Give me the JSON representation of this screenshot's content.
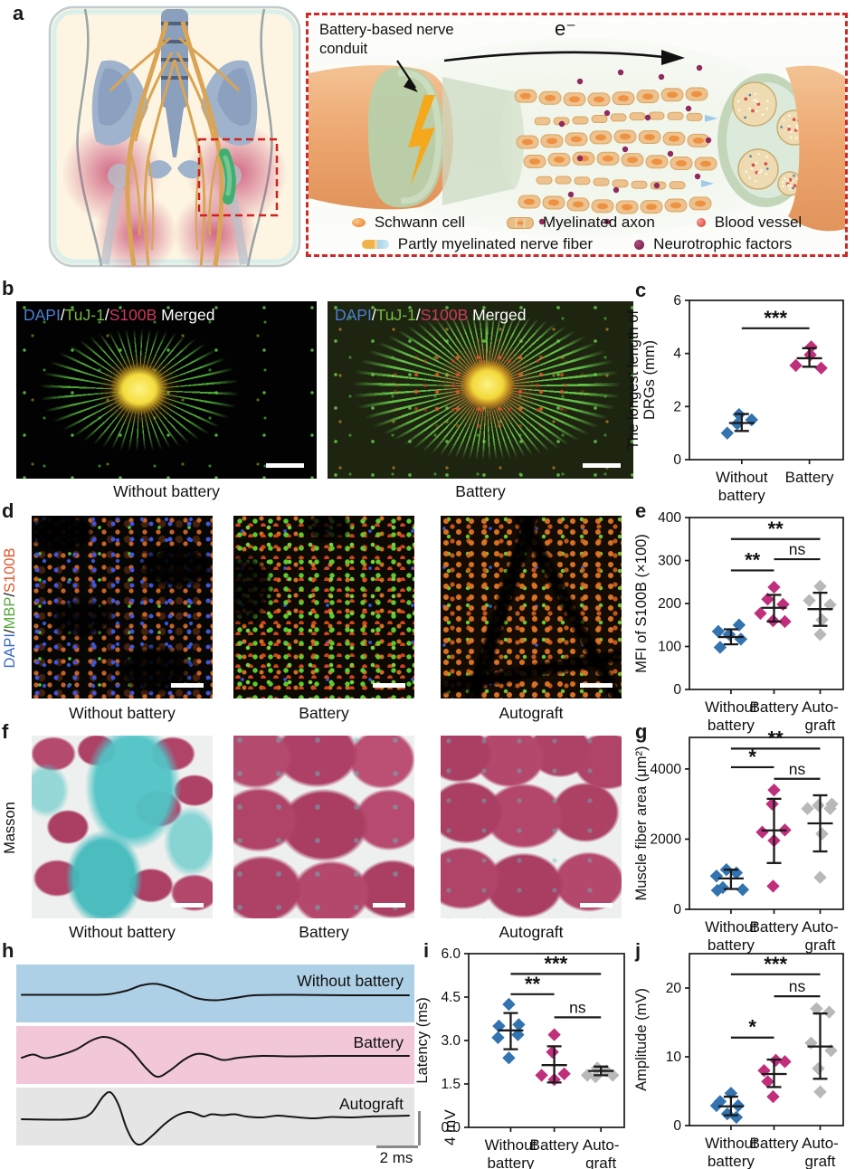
{
  "panels": {
    "a": {
      "label": "a",
      "schematic": {
        "callout": "Battery-based nerve conduit",
        "electron_label": "e⁻",
        "legend_row1": [
          {
            "icon": "schwann-cell-icon",
            "label": "Schwann cell"
          },
          {
            "icon": "myelinated-axon-icon",
            "label": "Myelinated axon"
          },
          {
            "icon": "blood-vessel-icon",
            "label": "Blood vessel"
          }
        ],
        "legend_row2": [
          {
            "icon": "partly-myelinated-nerve-fiber-icon",
            "label": "Partly myelinated nerve fiber"
          },
          {
            "icon": "neurotrophic-factors-icon",
            "label": "Neurotrophic factors"
          }
        ]
      }
    },
    "b": {
      "label": "b",
      "stain_header": [
        {
          "text": "DAPI",
          "color": "#4d7fd6"
        },
        {
          "text": "/",
          "color": "#ffffff"
        },
        {
          "text": "TuJ-1",
          "color": "#76b943"
        },
        {
          "text": "/",
          "color": "#ffffff"
        },
        {
          "text": "S100B",
          "color": "#cc3a5f"
        },
        {
          "text": " Merged",
          "color": "#ffffff"
        }
      ],
      "captions": [
        "Without battery",
        "Battery"
      ]
    },
    "c": {
      "label": "c"
    },
    "d": {
      "label": "d",
      "stain_label_parts": [
        {
          "text": "DAPI",
          "color": "#3a66c9"
        },
        {
          "text": "/",
          "color": "#1a1a1a"
        },
        {
          "text": "MBP",
          "color": "#59a83f"
        },
        {
          "text": "/",
          "color": "#1a1a1a"
        },
        {
          "text": "S100B",
          "color": "#e2572e"
        }
      ],
      "captions": [
        "Without battery",
        "Battery",
        "Autograft"
      ]
    },
    "e": {
      "label": "e"
    },
    "f": {
      "label": "f",
      "stain_label": "Masson",
      "captions": [
        "Without battery",
        "Battery",
        "Autograft"
      ]
    },
    "g": {
      "label": "g"
    },
    "h": {
      "label": "h",
      "scale_v": "4 mV",
      "scale_h": "2 ms"
    },
    "i": {
      "label": "i"
    },
    "j": {
      "label": "j"
    }
  },
  "colors": {
    "without_battery": "#3273b0",
    "battery": "#c02f7c",
    "autograft": "#b9b7b8",
    "band_without_battery": "#aed0e6",
    "band_battery": "#f3c7da",
    "band_autograft": "#e6e5e5",
    "dashed_box": "#cf2a2a"
  },
  "chart_data": [
    {
      "id": "c",
      "type": "scatter",
      "ylabel_lines": [
        "The longest length of",
        "DRGs (mm)"
      ],
      "ylim": [
        0,
        6
      ],
      "yticks": [
        {
          "v": 0,
          "t": "0"
        },
        {
          "v": 2,
          "t": "2"
        },
        {
          "v": 4,
          "t": "4"
        },
        {
          "v": 6,
          "t": "6"
        }
      ],
      "categories": [
        [
          "Without",
          "battery"
        ],
        [
          "Battery"
        ]
      ],
      "series": [
        {
          "name": "Without battery",
          "color": "#3273b0",
          "points": [
            [
              -16,
              1.0
            ],
            [
              -5,
              1.35
            ],
            [
              -3,
              1.7
            ],
            [
              11,
              1.5
            ]
          ],
          "mean": 1.38,
          "err": [
            1.08,
            1.72
          ]
        },
        {
          "name": "Battery",
          "color": "#c02f7c",
          "points": [
            [
              -15,
              3.55
            ],
            [
              1,
              3.95
            ],
            [
              2,
              4.25
            ],
            [
              13,
              3.45
            ]
          ],
          "mean": 3.82,
          "err": [
            3.5,
            4.2
          ]
        }
      ],
      "sig": [
        {
          "a": 0,
          "b": 1,
          "y": 4.95,
          "label": "***"
        }
      ]
    },
    {
      "id": "e",
      "type": "scatter",
      "ylabel_lines": [
        "MFI of S100B (×100)"
      ],
      "ylim": [
        0,
        400
      ],
      "yticks": [
        {
          "v": 0,
          "t": "0"
        },
        {
          "v": 100,
          "t": "100"
        },
        {
          "v": 200,
          "t": "200"
        },
        {
          "v": 300,
          "t": "300"
        },
        {
          "v": 400,
          "t": "400"
        }
      ],
      "categories": [
        [
          "Without",
          "battery"
        ],
        [
          "Battery"
        ],
        [
          "Auto-",
          "graft"
        ]
      ],
      "series": [
        {
          "name": "Without battery",
          "color": "#3273b0",
          "points": [
            [
              -14,
              135
            ],
            [
              -12,
              98
            ],
            [
              -2,
              128
            ],
            [
              9,
              150
            ],
            [
              11,
              117
            ]
          ],
          "mean": 122,
          "err": [
            105,
            140
          ]
        },
        {
          "name": "Battery",
          "color": "#c02f7c",
          "points": [
            [
              -15,
              177
            ],
            [
              -7,
              210
            ],
            [
              0,
              238
            ],
            [
              10,
              198
            ],
            [
              -1,
              160
            ],
            [
              12,
              158
            ]
          ],
          "mean": 190,
          "err": [
            158,
            220
          ]
        },
        {
          "name": "Autograft",
          "color": "#b9b7b8",
          "points": [
            [
              -12,
              207
            ],
            [
              0,
              240
            ],
            [
              11,
              197
            ],
            [
              2,
              162
            ],
            [
              0,
              128
            ]
          ],
          "mean": 187,
          "err": [
            148,
            225
          ]
        }
      ],
      "sig": [
        {
          "a": 0,
          "b": 1,
          "y": 277,
          "label": "**"
        },
        {
          "a": 1,
          "b": 2,
          "y": 303,
          "label": "ns"
        },
        {
          "a": 0,
          "b": 2,
          "y": 350,
          "label": "**"
        }
      ]
    },
    {
      "id": "g",
      "type": "scatter",
      "ylabel_lines": [
        "Muscle fiber area (μm²)"
      ],
      "ylim": [
        0,
        4900
      ],
      "yticks": [
        {
          "v": 0,
          "t": "0"
        },
        {
          "v": 2000,
          "t": "2000"
        },
        {
          "v": 4000,
          "t": "4000"
        }
      ],
      "categories": [
        [
          "Without",
          "battery"
        ],
        [
          "Battery"
        ],
        [
          "Auto-",
          "graft"
        ]
      ],
      "series": [
        {
          "name": "Without battery",
          "color": "#3273b0",
          "points": [
            [
              -16,
              950
            ],
            [
              -5,
              1130
            ],
            [
              6,
              1040
            ],
            [
              -9,
              620
            ],
            [
              -15,
              540
            ],
            [
              13,
              560
            ]
          ],
          "mean": 880,
          "err": [
            580,
            1130
          ]
        },
        {
          "name": "Battery",
          "color": "#c02f7c",
          "points": [
            [
              -13,
              2200
            ],
            [
              0,
              3400
            ],
            [
              -2,
              3000
            ],
            [
              12,
              2260
            ],
            [
              0,
              1960
            ],
            [
              -1,
              660
            ]
          ],
          "mean": 2250,
          "err": [
            1320,
            3150
          ]
        },
        {
          "name": "Autograft",
          "color": "#b9b7b8",
          "points": [
            [
              -14,
              2870
            ],
            [
              -2,
              2960
            ],
            [
              11,
              2870
            ],
            [
              13,
              3000
            ],
            [
              2,
              2150
            ],
            [
              0,
              910
            ]
          ],
          "mean": 2450,
          "err": [
            1650,
            3250
          ]
        }
      ],
      "sig": [
        {
          "a": 0,
          "b": 1,
          "y": 4050,
          "label": "*"
        },
        {
          "a": 1,
          "b": 2,
          "y": 3720,
          "label": "ns"
        },
        {
          "a": 0,
          "b": 2,
          "y": 4580,
          "label": "**"
        }
      ]
    },
    {
      "id": "i",
      "type": "scatter",
      "ylabel_lines": [
        "Latency (ms)"
      ],
      "ylim": [
        0,
        6
      ],
      "yticks": [
        {
          "v": 0,
          "t": "0.0"
        },
        {
          "v": 1.5,
          "t": "1.5"
        },
        {
          "v": 3,
          "t": "3.0"
        },
        {
          "v": 4.5,
          "t": "4.5"
        },
        {
          "v": 6,
          "t": "6.0"
        }
      ],
      "categories": [
        [
          "Without",
          "battery"
        ],
        [
          "Battery"
        ],
        [
          "Auto-",
          "graft"
        ]
      ],
      "series": [
        {
          "name": "Without battery",
          "color": "#3273b0",
          "points": [
            [
              -13,
              3.5
            ],
            [
              -2,
              4.25
            ],
            [
              9,
              3.55
            ],
            [
              -14,
              3.1
            ],
            [
              8,
              3.2
            ],
            [
              -2,
              2.4
            ]
          ],
          "mean": 3.35,
          "err": [
            2.7,
            3.95
          ]
        },
        {
          "name": "Battery",
          "color": "#c02f7c",
          "points": [
            [
              0,
              3.2
            ],
            [
              -2,
              2.6
            ],
            [
              -14,
              1.8
            ],
            [
              0,
              1.65
            ],
            [
              11,
              1.85
            ]
          ],
          "mean": 2.15,
          "err": [
            1.55,
            2.8
          ]
        },
        {
          "name": "Autograft",
          "color": "#b9b7b8",
          "points": [
            [
              -15,
              1.8
            ],
            [
              -4,
              2.05
            ],
            [
              6,
              1.95
            ],
            [
              -6,
              1.75
            ],
            [
              13,
              1.8
            ]
          ],
          "mean": 1.95,
          "err": [
            1.8,
            2.1
          ]
        }
      ],
      "sig": [
        {
          "a": 0,
          "b": 1,
          "y": 4.6,
          "label": "**"
        },
        {
          "a": 1,
          "b": 2,
          "y": 3.8,
          "label": "ns"
        },
        {
          "a": 0,
          "b": 2,
          "y": 5.3,
          "label": "***"
        }
      ]
    },
    {
      "id": "j",
      "type": "scatter",
      "ylabel_lines": [
        "Amplitude (mV)"
      ],
      "ylim": [
        0,
        25
      ],
      "yticks": [
        {
          "v": 0,
          "t": "0"
        },
        {
          "v": 10,
          "t": "10"
        },
        {
          "v": 20,
          "t": "20"
        }
      ],
      "categories": [
        [
          "Without",
          "battery"
        ],
        [
          "Battery"
        ],
        [
          "Auto-",
          "graft"
        ]
      ],
      "series": [
        {
          "name": "Without battery",
          "color": "#3273b0",
          "points": [
            [
              -12,
              3.5
            ],
            [
              0,
              4.7
            ],
            [
              -16,
              2.9
            ],
            [
              8,
              2.9
            ],
            [
              -4,
              1.7
            ],
            [
              6,
              1.2
            ]
          ],
          "mean": 2.8,
          "err": [
            1.5,
            4.2
          ]
        },
        {
          "name": "Battery",
          "color": "#c02f7c",
          "points": [
            [
              -11,
              8.0
            ],
            [
              2,
              9.5
            ],
            [
              12,
              9.3
            ],
            [
              -7,
              6.4
            ],
            [
              -1,
              4.2
            ]
          ],
          "mean": 7.5,
          "err": [
            5.6,
            9.6
          ]
        },
        {
          "name": "Autograft",
          "color": "#b9b7b8",
          "points": [
            [
              -4,
              17.0
            ],
            [
              10,
              16.5
            ],
            [
              -10,
              12.0
            ],
            [
              12,
              10.9
            ],
            [
              -2,
              8.3
            ],
            [
              0,
              4.9
            ]
          ],
          "mean": 11.5,
          "err": [
            6.8,
            16.3
          ]
        }
      ],
      "sig": [
        {
          "a": 0,
          "b": 1,
          "y": 12.8,
          "label": "*"
        },
        {
          "a": 1,
          "b": 2,
          "y": 18.8,
          "label": "ns"
        },
        {
          "a": 0,
          "b": 2,
          "y": 22.0,
          "label": "***"
        }
      ]
    },
    {
      "id": "h",
      "type": "line",
      "xscale_label": "2 ms",
      "yscale_label": "4 mV",
      "traces": [
        {
          "label": "Without battery",
          "band_color": "#aed0e6",
          "points": [
            [
              0,
              0.05
            ],
            [
              0.15,
              0.05
            ],
            [
              0.22,
              0.1
            ],
            [
              0.27,
              0.5
            ],
            [
              0.31,
              1.1
            ],
            [
              0.35,
              1.25
            ],
            [
              0.4,
              0.6
            ],
            [
              0.45,
              -0.3
            ],
            [
              0.5,
              -0.55
            ],
            [
              0.55,
              -0.3
            ],
            [
              0.6,
              0
            ],
            [
              0.7,
              0.05
            ],
            [
              0.85,
              0
            ],
            [
              1,
              0
            ]
          ]
        },
        {
          "label": "Battery",
          "band_color": "#f3c7da",
          "points": [
            [
              0,
              -0.1
            ],
            [
              0.03,
              0.25
            ],
            [
              0.06,
              -0.15
            ],
            [
              0.1,
              0.2
            ],
            [
              0.14,
              0.8
            ],
            [
              0.18,
              1.8
            ],
            [
              0.21,
              2.2
            ],
            [
              0.24,
              1.9
            ],
            [
              0.28,
              0.8
            ],
            [
              0.32,
              -1.2
            ],
            [
              0.35,
              -2.2
            ],
            [
              0.38,
              -1.6
            ],
            [
              0.42,
              -0.3
            ],
            [
              0.45,
              0.3
            ],
            [
              0.48,
              0.2
            ],
            [
              0.52,
              -0.35
            ],
            [
              0.56,
              -0.1
            ],
            [
              0.62,
              0.1
            ],
            [
              0.7,
              0.05
            ],
            [
              0.8,
              0.1
            ],
            [
              1,
              0.1
            ]
          ]
        },
        {
          "label": "Autograft",
          "band_color": "#e6e5e5",
          "points": [
            [
              0,
              -0.1
            ],
            [
              0.1,
              -0.15
            ],
            [
              0.15,
              0
            ],
            [
              0.18,
              0.6
            ],
            [
              0.21,
              2.4
            ],
            [
              0.23,
              2.85
            ],
            [
              0.25,
              1.5
            ],
            [
              0.27,
              -1
            ],
            [
              0.29,
              -2.6
            ],
            [
              0.31,
              -2.85
            ],
            [
              0.34,
              -1.8
            ],
            [
              0.37,
              -0.6
            ],
            [
              0.4,
              0.3
            ],
            [
              0.43,
              0.7
            ],
            [
              0.45,
              0.5
            ],
            [
              0.47,
              0.2
            ],
            [
              0.49,
              0.45
            ],
            [
              0.52,
              0.35
            ],
            [
              0.55,
              0.45
            ],
            [
              0.58,
              0.2
            ],
            [
              0.62,
              0.1
            ],
            [
              0.66,
              0.3
            ],
            [
              0.69,
              0.2
            ],
            [
              0.75,
              0
            ],
            [
              0.8,
              0.15
            ],
            [
              0.85,
              0.1
            ],
            [
              0.9,
              0.2
            ],
            [
              0.95,
              0.25
            ],
            [
              1,
              0.3
            ]
          ]
        }
      ]
    }
  ]
}
